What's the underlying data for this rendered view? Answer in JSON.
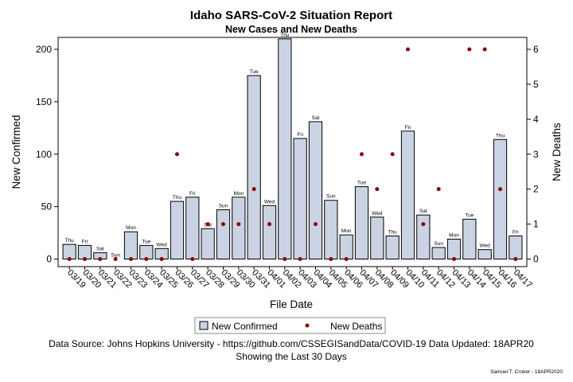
{
  "chart_data": {
    "type": "bar",
    "title": "Idaho SARS-CoV-2 Situation Report",
    "subtitle": "New Cases and New Deaths",
    "xlabel": "File Date",
    "ylabel_left": "New Confirmed",
    "ylabel_right": "New Deaths",
    "ylim_left": [
      0,
      200
    ],
    "yticks_left": [
      0,
      50,
      100,
      150,
      200
    ],
    "ylim_right": [
      0,
      6
    ],
    "yticks_right": [
      0,
      1,
      2,
      3,
      4,
      5,
      6
    ],
    "categories": [
      "03/19",
      "03/20",
      "03/21",
      "03/22",
      "03/23",
      "03/24",
      "03/25",
      "03/26",
      "03/27",
      "03/28",
      "03/29",
      "03/30",
      "03/31",
      "04/01",
      "04/02",
      "04/03",
      "04/04",
      "04/05",
      "04/06",
      "04/07",
      "04/08",
      "04/09",
      "04/10",
      "04/11",
      "04/12",
      "04/13",
      "04/14",
      "04/15",
      "04/16",
      "04/17"
    ],
    "day_labels": [
      "Thu",
      "Fri",
      "Sat",
      "Sun",
      "Mon",
      "Tue",
      "Wed",
      "Thu",
      "Fri",
      "Sat",
      "Sun",
      "Mon",
      "Tue",
      "Wed",
      "Thu",
      "Fri",
      "Sat",
      "Sun",
      "Mon",
      "Tue",
      "Wed",
      "Thu",
      "Fri",
      "Sat",
      "Sun",
      "Mon",
      "Tue",
      "Wed",
      "Thu",
      "Fri"
    ],
    "series": [
      {
        "name": "New Confirmed",
        "type": "bar",
        "axis": "left",
        "color": "#c9d3e3",
        "values": [
          14,
          13,
          6,
          0,
          26,
          13,
          10,
          55,
          59,
          29,
          47,
          59,
          175,
          51,
          210,
          115,
          131,
          56,
          23,
          69,
          40,
          22,
          122,
          42,
          11,
          19,
          38,
          9,
          114,
          22
        ]
      },
      {
        "name": "New Deaths",
        "type": "scatter",
        "axis": "right",
        "color": "#8b0000",
        "values": [
          0,
          0,
          0,
          0,
          0,
          0,
          0,
          3,
          0,
          1,
          1,
          1,
          2,
          1,
          0,
          0,
          1,
          0,
          0,
          3,
          2,
          3,
          6,
          1,
          2,
          0,
          6,
          6,
          2,
          0
        ]
      }
    ],
    "legend_position": "bottom",
    "grid": false
  },
  "footnote_line1": "Data Source: Johns Hopkins University - https://github.com/CSSEGISandData/COVID-19 Data Updated: 18APR20",
  "footnote_line2": "Showing the Last 30 Days",
  "credit": "Samuel T. Croker - 18APR2020"
}
